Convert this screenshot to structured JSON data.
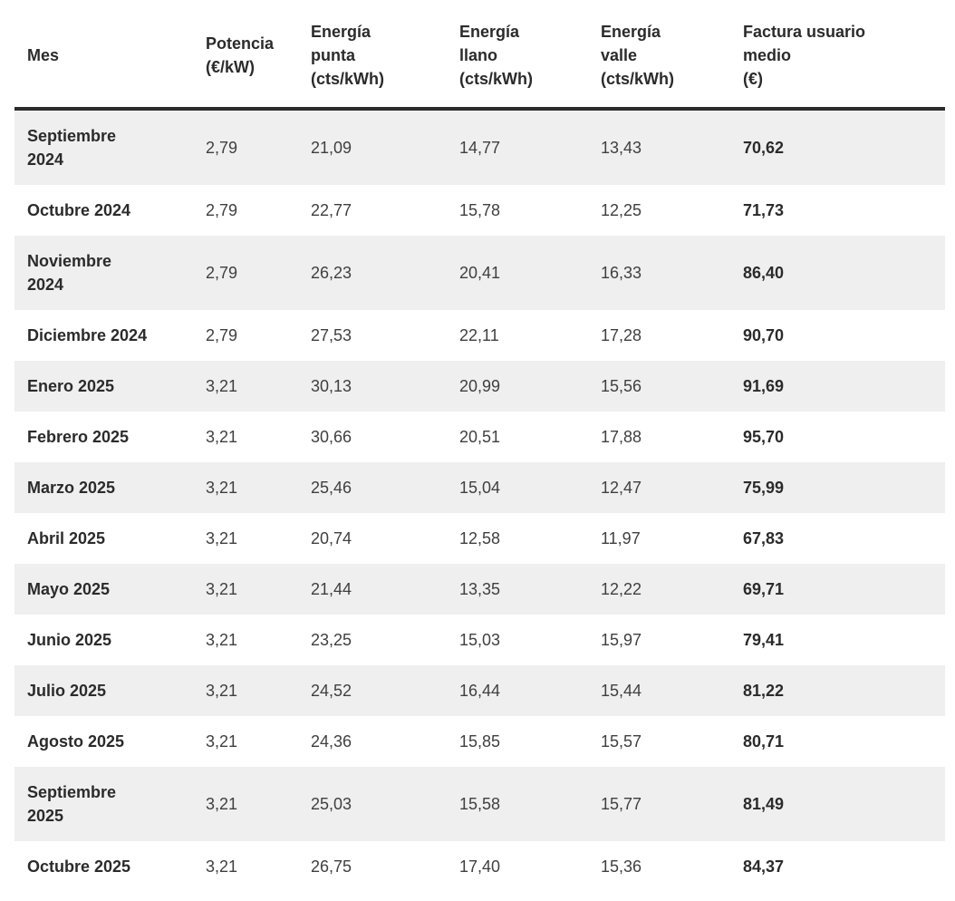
{
  "table": {
    "columns": [
      {
        "label": "Mes"
      },
      {
        "label": "Potencia\n(€/kW)"
      },
      {
        "label": "Energía\npunta\n(cts/kWh)"
      },
      {
        "label": "Energía\nllano\n(cts/kWh)"
      },
      {
        "label": "Energía\nvalle\n(cts/kWh)"
      },
      {
        "label": "Factura usuario\nmedio\n(€)"
      }
    ],
    "rows": [
      {
        "mes": "Septiembre\n2024",
        "potencia": "2,79",
        "punta": "21,09",
        "llano": "14,77",
        "valle": "13,43",
        "factura": "70,62"
      },
      {
        "mes": "Octubre 2024",
        "potencia": "2,79",
        "punta": "22,77",
        "llano": "15,78",
        "valle": "12,25",
        "factura": "71,73"
      },
      {
        "mes": "Noviembre\n2024",
        "potencia": "2,79",
        "punta": "26,23",
        "llano": "20,41",
        "valle": "16,33",
        "factura": "86,40"
      },
      {
        "mes": "Diciembre 2024",
        "potencia": "2,79",
        "punta": "27,53",
        "llano": "22,11",
        "valle": "17,28",
        "factura": "90,70"
      },
      {
        "mes": "Enero 2025",
        "potencia": "3,21",
        "punta": "30,13",
        "llano": "20,99",
        "valle": "15,56",
        "factura": "91,69"
      },
      {
        "mes": "Febrero 2025",
        "potencia": "3,21",
        "punta": "30,66",
        "llano": "20,51",
        "valle": "17,88",
        "factura": "95,70"
      },
      {
        "mes": "Marzo 2025",
        "potencia": "3,21",
        "punta": "25,46",
        "llano": "15,04",
        "valle": "12,47",
        "factura": "75,99"
      },
      {
        "mes": "Abril 2025",
        "potencia": "3,21",
        "punta": "20,74",
        "llano": "12,58",
        "valle": "11,97",
        "factura": "67,83"
      },
      {
        "mes": "Mayo 2025",
        "potencia": "3,21",
        "punta": "21,44",
        "llano": "13,35",
        "valle": "12,22",
        "factura": "69,71"
      },
      {
        "mes": "Junio 2025",
        "potencia": "3,21",
        "punta": "23,25",
        "llano": "15,03",
        "valle": "15,97",
        "factura": "79,41"
      },
      {
        "mes": "Julio 2025",
        "potencia": "3,21",
        "punta": "24,52",
        "llano": "16,44",
        "valle": "15,44",
        "factura": "81,22"
      },
      {
        "mes": "Agosto 2025",
        "potencia": "3,21",
        "punta": "24,36",
        "llano": "15,85",
        "valle": "15,57",
        "factura": "80,71"
      },
      {
        "mes": "Septiembre\n2025",
        "potencia": "3,21",
        "punta": "25,03",
        "llano": "15,58",
        "valle": "15,77",
        "factura": "81,49"
      },
      {
        "mes": "Octubre 2025",
        "potencia": "3,21",
        "punta": "26,75",
        "llano": "17,40",
        "valle": "15,36",
        "factura": "84,37"
      }
    ]
  },
  "colors": {
    "stripe_gray": "#efefef",
    "header_rule": "#2b2b2b",
    "text_primary": "#2b2b2b",
    "text_secondary": "#3f3f3f",
    "background": "#ffffff"
  },
  "chart_data": {
    "type": "table",
    "title": "",
    "columns": [
      "Mes",
      "Potencia (€/kW)",
      "Energía punta (cts/kWh)",
      "Energía llano (cts/kWh)",
      "Energía valle (cts/kWh)",
      "Factura usuario medio (€)"
    ],
    "rows": [
      [
        "Septiembre 2024",
        2.79,
        21.09,
        14.77,
        13.43,
        70.62
      ],
      [
        "Octubre 2024",
        2.79,
        22.77,
        15.78,
        12.25,
        71.73
      ],
      [
        "Noviembre 2024",
        2.79,
        26.23,
        20.41,
        16.33,
        86.4
      ],
      [
        "Diciembre 2024",
        2.79,
        27.53,
        22.11,
        17.28,
        90.7
      ],
      [
        "Enero 2025",
        3.21,
        30.13,
        20.99,
        15.56,
        91.69
      ],
      [
        "Febrero 2025",
        3.21,
        30.66,
        20.51,
        17.88,
        95.7
      ],
      [
        "Marzo 2025",
        3.21,
        25.46,
        15.04,
        12.47,
        75.99
      ],
      [
        "Abril 2025",
        3.21,
        20.74,
        12.58,
        11.97,
        67.83
      ],
      [
        "Mayo 2025",
        3.21,
        21.44,
        13.35,
        12.22,
        69.71
      ],
      [
        "Junio 2025",
        3.21,
        23.25,
        15.03,
        15.97,
        79.41
      ],
      [
        "Julio 2025",
        3.21,
        24.52,
        16.44,
        15.44,
        81.22
      ],
      [
        "Agosto 2025",
        3.21,
        24.36,
        15.85,
        15.57,
        80.71
      ],
      [
        "Septiembre 2025",
        3.21,
        25.03,
        15.58,
        15.77,
        81.49
      ],
      [
        "Octubre 2025",
        3.21,
        26.75,
        17.4,
        15.36,
        84.37
      ]
    ],
    "decimal_separator": ",",
    "layout": "striped-rows, bold first and last columns, thick rule under header"
  }
}
